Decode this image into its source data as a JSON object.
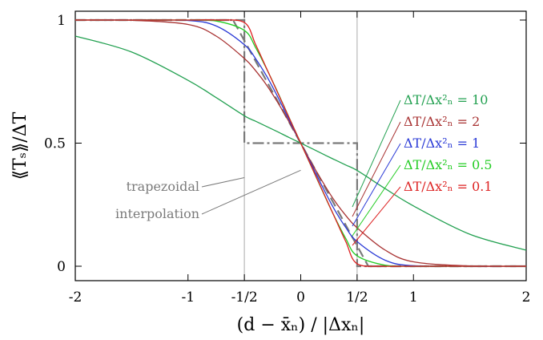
{
  "chart_data": {
    "type": "line",
    "xlabel": "(d − x̄ₙ) / |Δxₙ|",
    "ylabel": "⟪Tₛ⟫/ΔT",
    "xlim": [
      -2,
      2
    ],
    "ylim": [
      0,
      1
    ],
    "x_ticks": [
      {
        "value": -2,
        "label": "-2"
      },
      {
        "value": -1,
        "label": "-1"
      },
      {
        "value": -0.5,
        "label": "-1/2"
      },
      {
        "value": 0,
        "label": "0"
      },
      {
        "value": 0.5,
        "label": "1/2"
      },
      {
        "value": 1,
        "label": "1"
      },
      {
        "value": 2,
        "label": "2"
      }
    ],
    "y_ticks": [
      {
        "value": 0,
        "label": "0"
      },
      {
        "value": 0.5,
        "label": "0.5"
      },
      {
        "value": 1,
        "label": "1"
      }
    ],
    "vertical_guides": [
      -0.5,
      0.5
    ],
    "x": [
      -2,
      -1.5,
      -1,
      -0.75,
      -0.5,
      -0.4,
      -0.3,
      -0.2,
      -0.1,
      0,
      0.1,
      0.2,
      0.3,
      0.4,
      0.5,
      0.75,
      1,
      1.5,
      2
    ],
    "series": [
      {
        "name": "ΔT/Δx²ₙ = 10",
        "color": "#22a050",
        "values": [
          0.935,
          0.87,
          0.755,
          0.685,
          0.611,
          0.589,
          0.567,
          0.545,
          0.522,
          0.5,
          0.478,
          0.455,
          0.433,
          0.411,
          0.389,
          0.315,
          0.245,
          0.13,
          0.065
        ]
      },
      {
        "name": "ΔT/Δx²ₙ = 2",
        "color": "#a83232",
        "values": [
          1.0,
          0.999,
          0.982,
          0.935,
          0.844,
          0.794,
          0.734,
          0.662,
          0.584,
          0.5,
          0.416,
          0.338,
          0.266,
          0.206,
          0.156,
          0.065,
          0.018,
          0.001,
          0.0
        ]
      },
      {
        "name": "ΔT/Δx²ₙ = 1",
        "color": "#2a3ad6",
        "values": [
          1.0,
          1.0,
          0.998,
          0.976,
          0.9,
          0.843,
          0.77,
          0.684,
          0.592,
          0.5,
          0.408,
          0.316,
          0.23,
          0.157,
          0.1,
          0.024,
          0.002,
          0.0,
          0.0
        ]
      },
      {
        "name": "ΔT/Δx²ₙ = 0.5",
        "color": "#22cc22",
        "values": [
          1.0,
          1.0,
          1.0,
          0.996,
          0.958,
          0.888,
          0.799,
          0.702,
          0.601,
          0.5,
          0.399,
          0.298,
          0.201,
          0.112,
          0.042,
          0.004,
          0.0,
          0.0,
          0.0
        ]
      },
      {
        "name": "ΔT/Δx²ₙ = 0.1",
        "color": "#dd2222",
        "values": [
          1.0,
          1.0,
          1.0,
          1.0,
          0.99,
          0.9,
          0.8,
          0.7,
          0.6,
          0.5,
          0.4,
          0.3,
          0.2,
          0.1,
          0.01,
          0.0,
          0.0,
          0.0,
          0.0
        ]
      }
    ],
    "reference_lines": [
      {
        "name": "trapezoidal",
        "color": "#7a7a7a",
        "points": [
          [
            -2,
            1
          ],
          [
            -0.5,
            1
          ],
          [
            -0.5,
            0.5
          ],
          [
            0.5,
            0.5
          ],
          [
            0.5,
            0
          ],
          [
            2,
            0
          ]
        ]
      },
      {
        "name": "interpolation",
        "color": "#7a7a7a",
        "points": [
          [
            -2,
            1
          ],
          [
            -0.6,
            1
          ],
          [
            0.6,
            0
          ],
          [
            2,
            0
          ]
        ]
      }
    ],
    "annotations": [
      {
        "text": "trapezoidal",
        "target": [
          -0.5,
          0.36
        ]
      },
      {
        "text": "interpolation",
        "target": [
          0.0,
          0.39
        ]
      }
    ]
  }
}
